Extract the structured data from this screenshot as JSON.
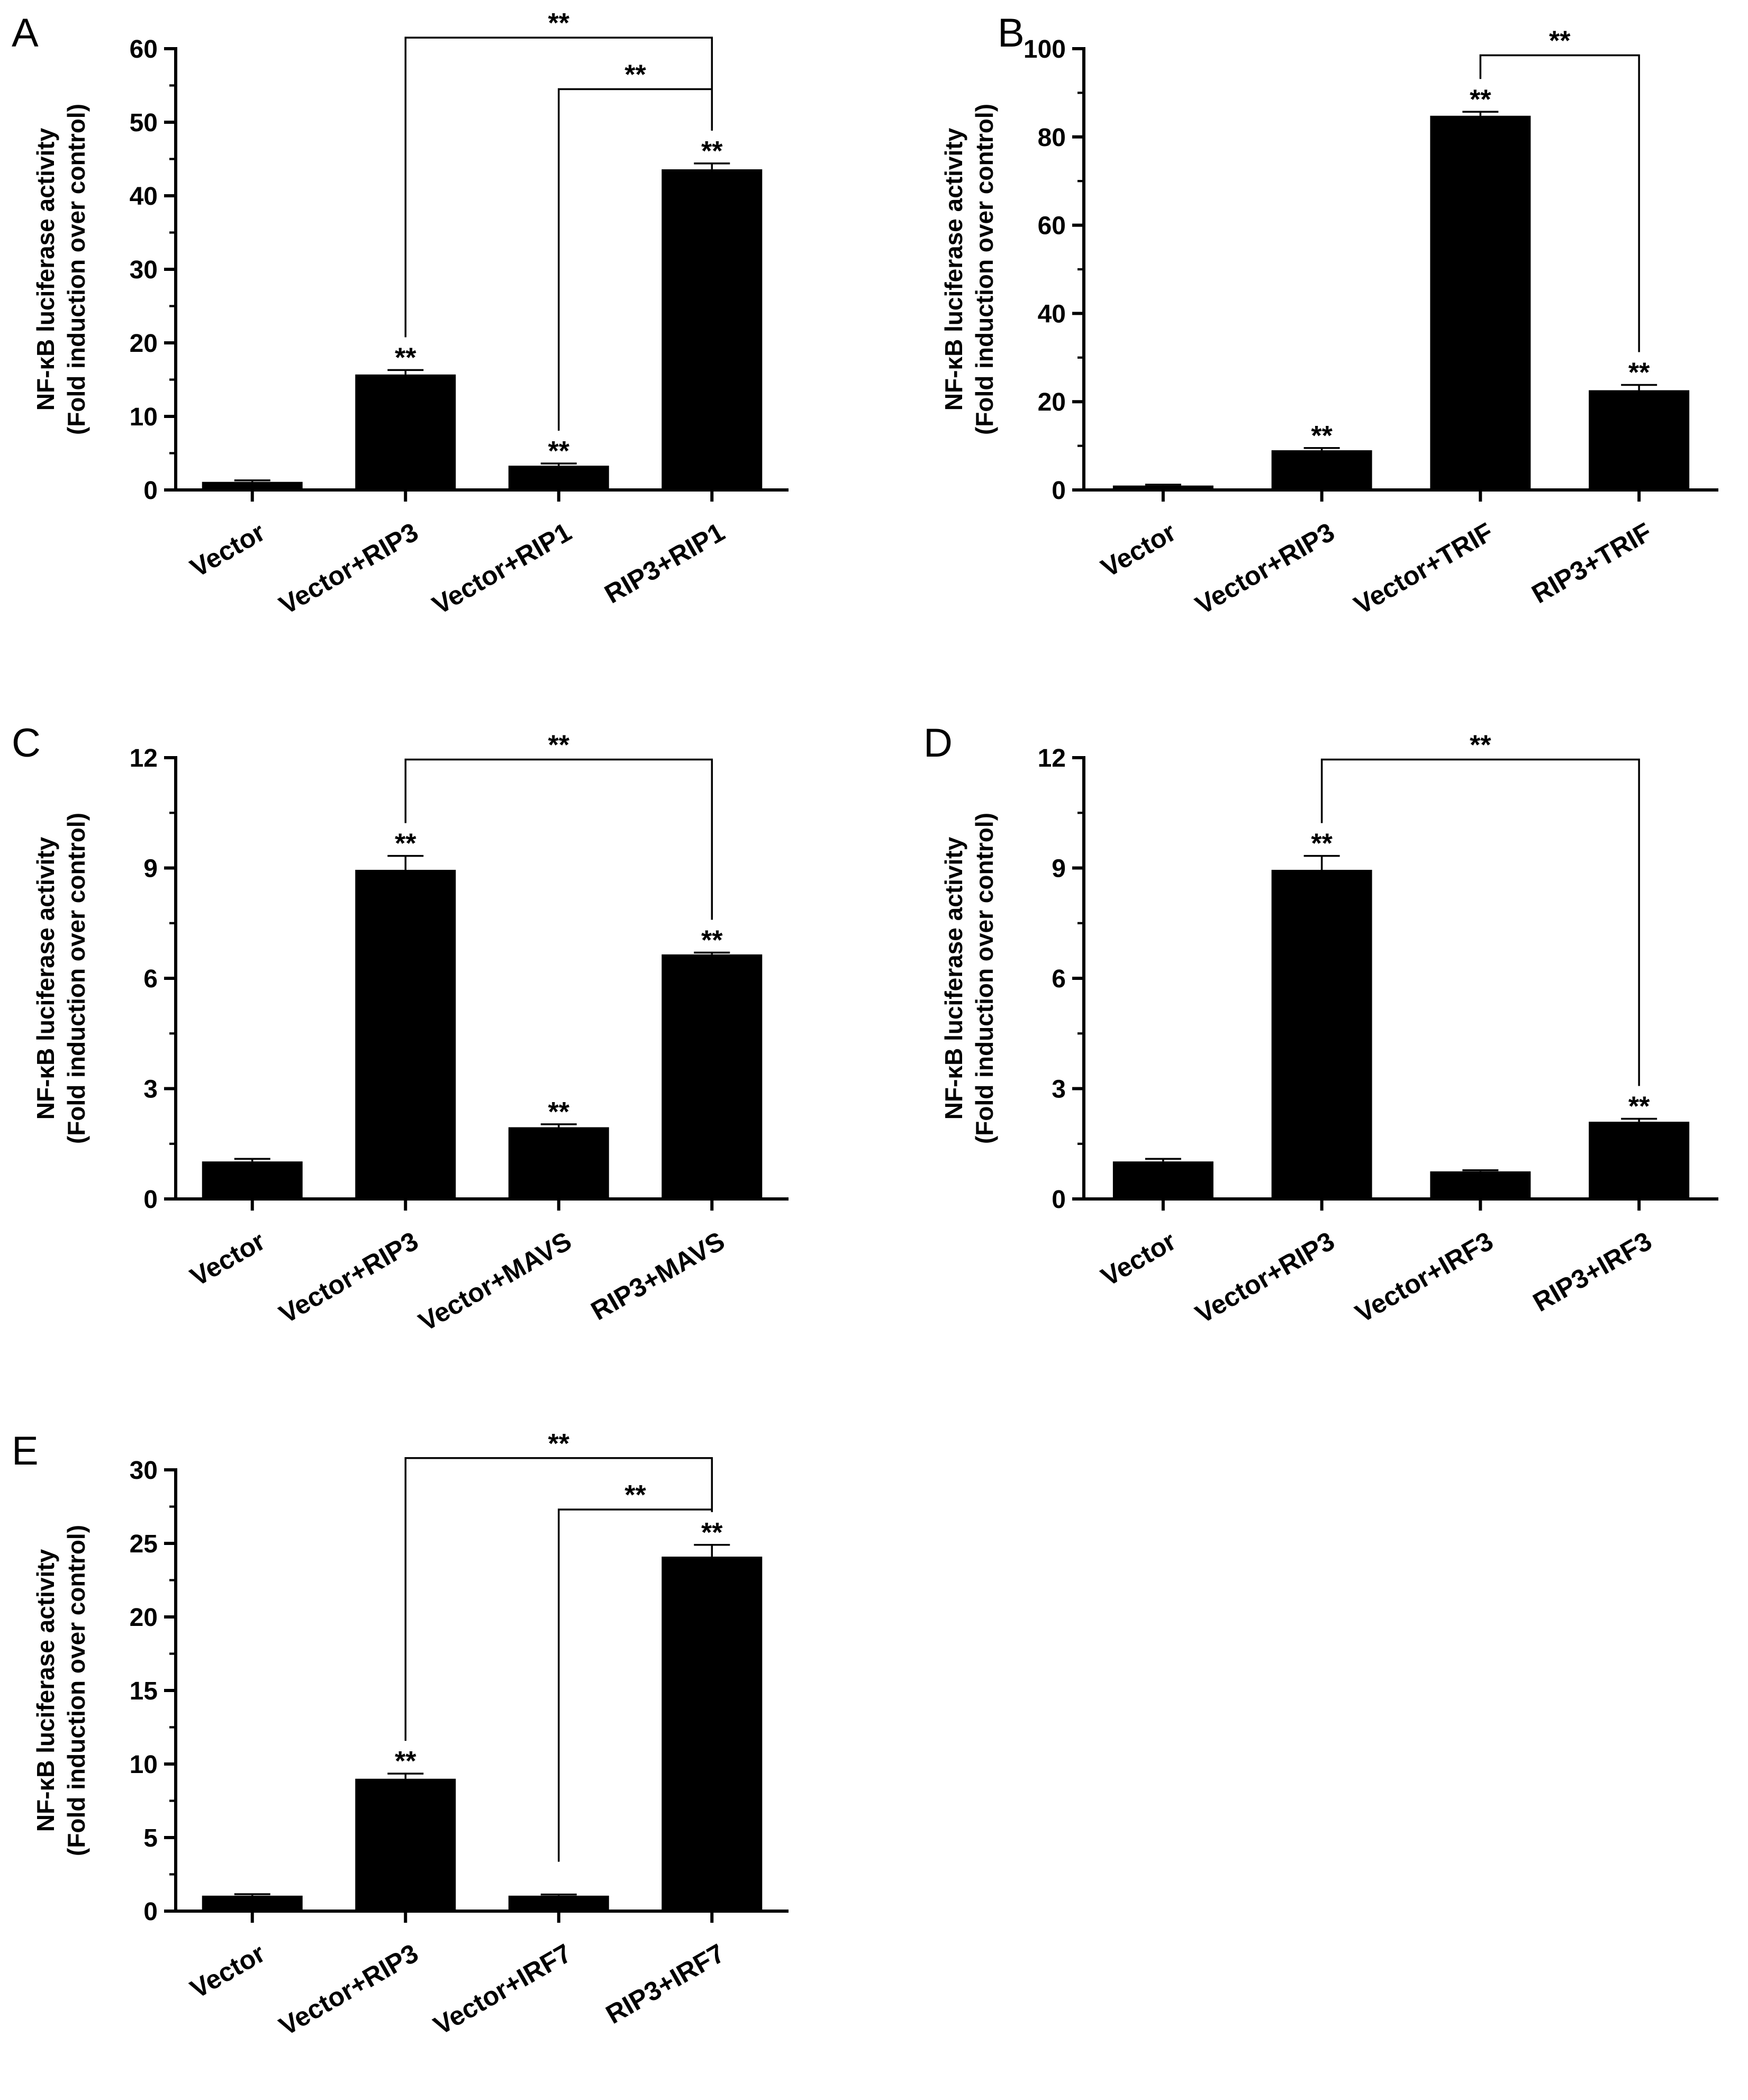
{
  "figure": {
    "background": "#ffffff",
    "ink": "#000000"
  },
  "chart_data": [
    {
      "panel_label": "A",
      "type": "bar",
      "title": "",
      "xlabel": "",
      "ylabel": "NF-κB luciferase activity",
      "ylabel2": "(Fold induction over control)",
      "categories": [
        "Vector",
        "Vector+RIP3",
        "Vector+RIP1",
        "RIP3+RIP1"
      ],
      "values": [
        1.1,
        15.7,
        3.3,
        43.6
      ],
      "errors": [
        0.2,
        0.6,
        0.3,
        0.8
      ],
      "significance": [
        "",
        "**",
        "**",
        "**"
      ],
      "ylim": [
        0,
        60
      ],
      "yticks": [
        0,
        10,
        20,
        30,
        40,
        50,
        60
      ],
      "ytick_labels": [
        "0",
        "10",
        "20",
        "30",
        "40",
        "50",
        "60"
      ],
      "comparisons": [
        {
          "from": 1,
          "to": 3,
          "label": "**",
          "level": 61.5
        },
        {
          "from": 2,
          "to": 3,
          "label": "**",
          "level": 54.5
        }
      ]
    },
    {
      "panel_label": "B",
      "type": "bar",
      "title": "",
      "xlabel": "",
      "ylabel": "NF-κB luciferase activity",
      "ylabel2": "(Fold induction over control)",
      "categories": [
        "Vector",
        "Vector+RIP3",
        "Vector+TRIF",
        "RIP3+TRIF"
      ],
      "values": [
        1,
        9,
        84.8,
        22.6
      ],
      "errors": [
        0.2,
        0.5,
        0.9,
        1.2
      ],
      "significance": [
        "",
        "**",
        "**",
        "**"
      ],
      "ylim": [
        0,
        100
      ],
      "yticks": [
        0,
        20,
        40,
        60,
        80,
        100
      ],
      "ytick_labels": [
        "0",
        "20",
        "40",
        "60",
        "80",
        "100"
      ],
      "comparisons": [
        {
          "from": 2,
          "to": 3,
          "label": "**",
          "level": 98.5
        }
      ]
    },
    {
      "panel_label": "C",
      "type": "bar",
      "title": "",
      "xlabel": "",
      "ylabel": "NF-κB luciferase activity",
      "ylabel2": "(Fold induction over control)",
      "categories": [
        "Vector",
        "Vector+RIP3",
        "Vector+MAVS",
        "RIP3+MAVS"
      ],
      "values": [
        1.02,
        8.95,
        1.95,
        6.65
      ],
      "errors": [
        0.07,
        0.38,
        0.08,
        0.05
      ],
      "significance": [
        "",
        "**",
        "**",
        "**"
      ],
      "ylim": [
        0,
        12
      ],
      "yticks": [
        0,
        3,
        6,
        9,
        12
      ],
      "ytick_labels": [
        "0",
        "3",
        "6",
        "9",
        "12"
      ],
      "comparisons": [
        {
          "from": 1,
          "to": 3,
          "label": "**",
          "level": 11.95
        }
      ]
    },
    {
      "panel_label": "D",
      "type": "bar",
      "title": "",
      "xlabel": "",
      "ylabel": "NF-κB luciferase activity",
      "ylabel2": "(Fold induction over control)",
      "categories": [
        "Vector",
        "Vector+RIP3",
        "Vector+IRF3",
        "RIP3+IRF3"
      ],
      "values": [
        1.02,
        8.95,
        0.75,
        2.1
      ],
      "errors": [
        0.07,
        0.38,
        0.03,
        0.08
      ],
      "significance": [
        "",
        "**",
        "",
        "**"
      ],
      "ylim": [
        0,
        12
      ],
      "yticks": [
        0,
        3,
        6,
        9,
        12
      ],
      "ytick_labels": [
        "0",
        "3",
        "6",
        "9",
        "12"
      ],
      "comparisons": [
        {
          "from": 1,
          "to": 3,
          "label": "**",
          "level": 11.95
        }
      ]
    },
    {
      "panel_label": "E",
      "type": "bar",
      "title": "",
      "xlabel": "",
      "ylabel": "NF-κB luciferase activity",
      "ylabel2": "(Fold induction over control)",
      "categories": [
        "Vector",
        "Vector+RIP3",
        "Vector+IRF7",
        "RIP3+IRF7"
      ],
      "values": [
        1.05,
        9,
        1.05,
        24.1
      ],
      "errors": [
        0.1,
        0.35,
        0.08,
        0.8
      ],
      "significance": [
        "",
        "**",
        "",
        "**"
      ],
      "ylim": [
        0,
        30
      ],
      "yticks": [
        0,
        5,
        10,
        15,
        20,
        25,
        30
      ],
      "ytick_labels": [
        "0",
        "5",
        "10",
        "15",
        "20",
        "25",
        "30"
      ],
      "comparisons": [
        {
          "from": 1,
          "to": 3,
          "label": "**",
          "level": 30.8
        },
        {
          "from": 2,
          "to": 3,
          "label": "**",
          "level": 27.3
        }
      ]
    }
  ]
}
